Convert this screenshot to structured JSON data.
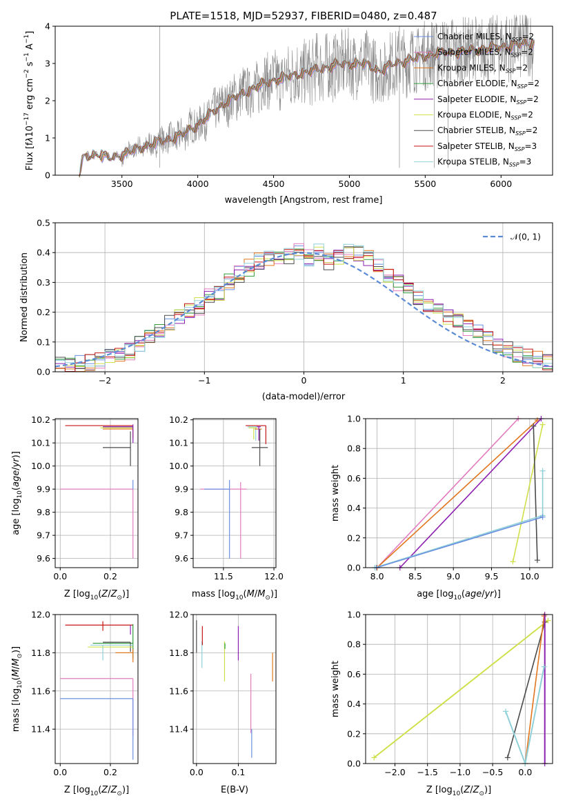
{
  "colors": {
    "chabrier_miles": "#6a8fe0",
    "salpeter_miles": "#e27bbd",
    "kroupa_miles": "#e2761f",
    "chabrier_elodie": "#2e9a3a",
    "salpeter_elodie": "#8c1fb0",
    "kroupa_elodie": "#cfe04a",
    "chabrier_stelib": "#4a4a4a",
    "salpeter_stelib": "#c41515",
    "kroupa_stelib": "#8fd0d8",
    "data": "#8a8a8a",
    "normal": "#5b8ad6"
  },
  "chart_data": [
    {
      "id": "spectrum",
      "type": "line",
      "title": "PLATE=1518, MJD=52937, FIBERID=0480, z=0.487",
      "xlabel": "wavelength [Angstrom, rest frame]",
      "ylabel": "Flux [fλ10⁻¹⁷ erg cm⁻² s⁻¹ A⁻¹]",
      "xlim": [
        3060,
        6340
      ],
      "ylim": [
        0,
        4
      ],
      "xticks": [
        3500,
        4000,
        4500,
        5000,
        5500,
        6000
      ],
      "yticks": [
        0,
        1,
        2,
        3,
        4
      ],
      "legend": [
        "Chabrier MILES, N_SSP=2",
        "Salpeter MILES, N_SSP=2",
        "Kroupa MILES, N_SSP=2",
        "Chabrier ELODIE, N_SSP=2",
        "Salpeter ELODIE, N_SSP=2",
        "Kroupa ELODIE, N_SSP=2",
        "Chabrier STELIB, N_SSP=2",
        "Salpeter STELIB, N_SSP=3",
        "Kroupa STELIB, N_SSP=3"
      ],
      "legend_placement": "upper right",
      "model_curve": {
        "x": [
          3220,
          3240,
          3300,
          3360,
          3420,
          3500,
          3600,
          3700,
          3800,
          3900,
          4000,
          4100,
          4200,
          4300,
          4400,
          4500,
          4600,
          4700,
          4800,
          4900,
          5000,
          5100,
          5200,
          5300,
          5400,
          5500,
          5600,
          5700,
          5800,
          5900,
          6000,
          6100,
          6200
        ],
        "y": [
          0,
          0.45,
          0.55,
          0.55,
          0.45,
          0.55,
          0.7,
          0.85,
          0.95,
          1.1,
          1.35,
          1.7,
          2.0,
          2.2,
          2.4,
          2.55,
          2.65,
          2.75,
          2.85,
          2.95,
          3.0,
          3.0,
          2.8,
          3.0,
          3.1,
          3.2,
          3.3,
          3.3,
          3.35,
          3.4,
          3.45,
          3.5,
          3.55
        ]
      }
    },
    {
      "id": "residuals",
      "type": "line",
      "xlabel": "(data-model)/error",
      "ylabel": "Normed distribution",
      "xlim": [
        -2.5,
        2.5
      ],
      "ylim": [
        0,
        0.5
      ],
      "xticks": [
        -2,
        -1,
        0,
        1,
        2
      ],
      "yticks": [
        0.0,
        0.1,
        0.2,
        0.3,
        0.4,
        0.5
      ],
      "legend": [
        "𝒩(0, 1)"
      ],
      "legend_placement": "upper right",
      "hist_bin_edges_start": -2.5,
      "hist_bin_width": 0.1,
      "hist_typical": [
        0.02,
        0.02,
        0.03,
        0.03,
        0.04,
        0.05,
        0.06,
        0.07,
        0.09,
        0.11,
        0.14,
        0.16,
        0.18,
        0.2,
        0.22,
        0.25,
        0.26,
        0.3,
        0.33,
        0.35,
        0.37,
        0.38,
        0.39,
        0.39,
        0.4,
        0.38,
        0.4,
        0.37,
        0.39,
        0.4,
        0.4,
        0.38,
        0.36,
        0.33,
        0.3,
        0.28,
        0.25,
        0.22,
        0.2,
        0.18,
        0.17,
        0.15,
        0.13,
        0.11,
        0.09,
        0.08,
        0.06,
        0.05,
        0.04,
        0.03
      ]
    },
    {
      "id": "age_vs_Z",
      "type": "scatter",
      "xlabel": "Z [log₁₀(Z/Z⊙)]",
      "ylabel": "age  [log₁₀(age/yr)]",
      "xlim": [
        -0.02,
        0.31
      ],
      "ylim": [
        9.56,
        10.205
      ],
      "xticks": [
        0.0,
        0.2
      ],
      "yticks": [
        9.6,
        9.7,
        9.8,
        9.9,
        10.0,
        10.1,
        10.2
      ]
    },
    {
      "id": "age_vs_mass",
      "type": "scatter",
      "xlabel": "mass [log₁₀(M/M⊙)]",
      "ylabel": "",
      "xlim": [
        11.2,
        12.02
      ],
      "ylim": [
        9.56,
        10.205
      ],
      "xticks": [
        11.5,
        12.0
      ],
      "yticks": [
        9.6,
        9.7,
        9.8,
        9.9,
        10.0,
        10.1,
        10.2
      ]
    },
    {
      "id": "weight_vs_age",
      "type": "line",
      "xlabel": "age  [log₁₀(age/yr)]",
      "ylabel": "mass weight",
      "xlim": [
        7.85,
        10.3
      ],
      "ylim": [
        0,
        1
      ],
      "xticks": [
        8.0,
        8.5,
        9.0,
        9.5,
        10.0
      ],
      "yticks": [
        0.0,
        0.2,
        0.4,
        0.6,
        0.8,
        1.0
      ]
    },
    {
      "id": "mass_vs_Z",
      "type": "scatter",
      "xlabel": "Z [log₁₀(Z/Z⊙)]",
      "ylabel": "mass [log₁₀(M/M⊙)]",
      "xlim": [
        -0.02,
        0.31
      ],
      "ylim": [
        11.22,
        12.0
      ],
      "xticks": [
        0.0,
        0.2
      ],
      "yticks": [
        11.4,
        11.6,
        11.8,
        12.0
      ]
    },
    {
      "id": "mass_vs_ebv",
      "type": "scatter",
      "xlabel": "E(B-V)",
      "ylabel": "",
      "xlim": [
        -0.008,
        0.19
      ],
      "ylim": [
        11.22,
        12.0
      ],
      "xticks": [
        0.0,
        0.1
      ],
      "yticks": [
        11.4,
        11.6,
        11.8,
        12.0
      ]
    },
    {
      "id": "weight_vs_Z",
      "type": "line",
      "xlabel": "Z [log₁₀(Z/Z⊙)]",
      "ylabel": "mass weight",
      "xlim": [
        -2.45,
        0.42
      ],
      "ylim": [
        0,
        1
      ],
      "xticks": [
        -2.0,
        -1.5,
        -1.0,
        -0.5,
        0.0
      ],
      "yticks": [
        0.0,
        0.2,
        0.4,
        0.6,
        0.8,
        1.0
      ]
    }
  ]
}
